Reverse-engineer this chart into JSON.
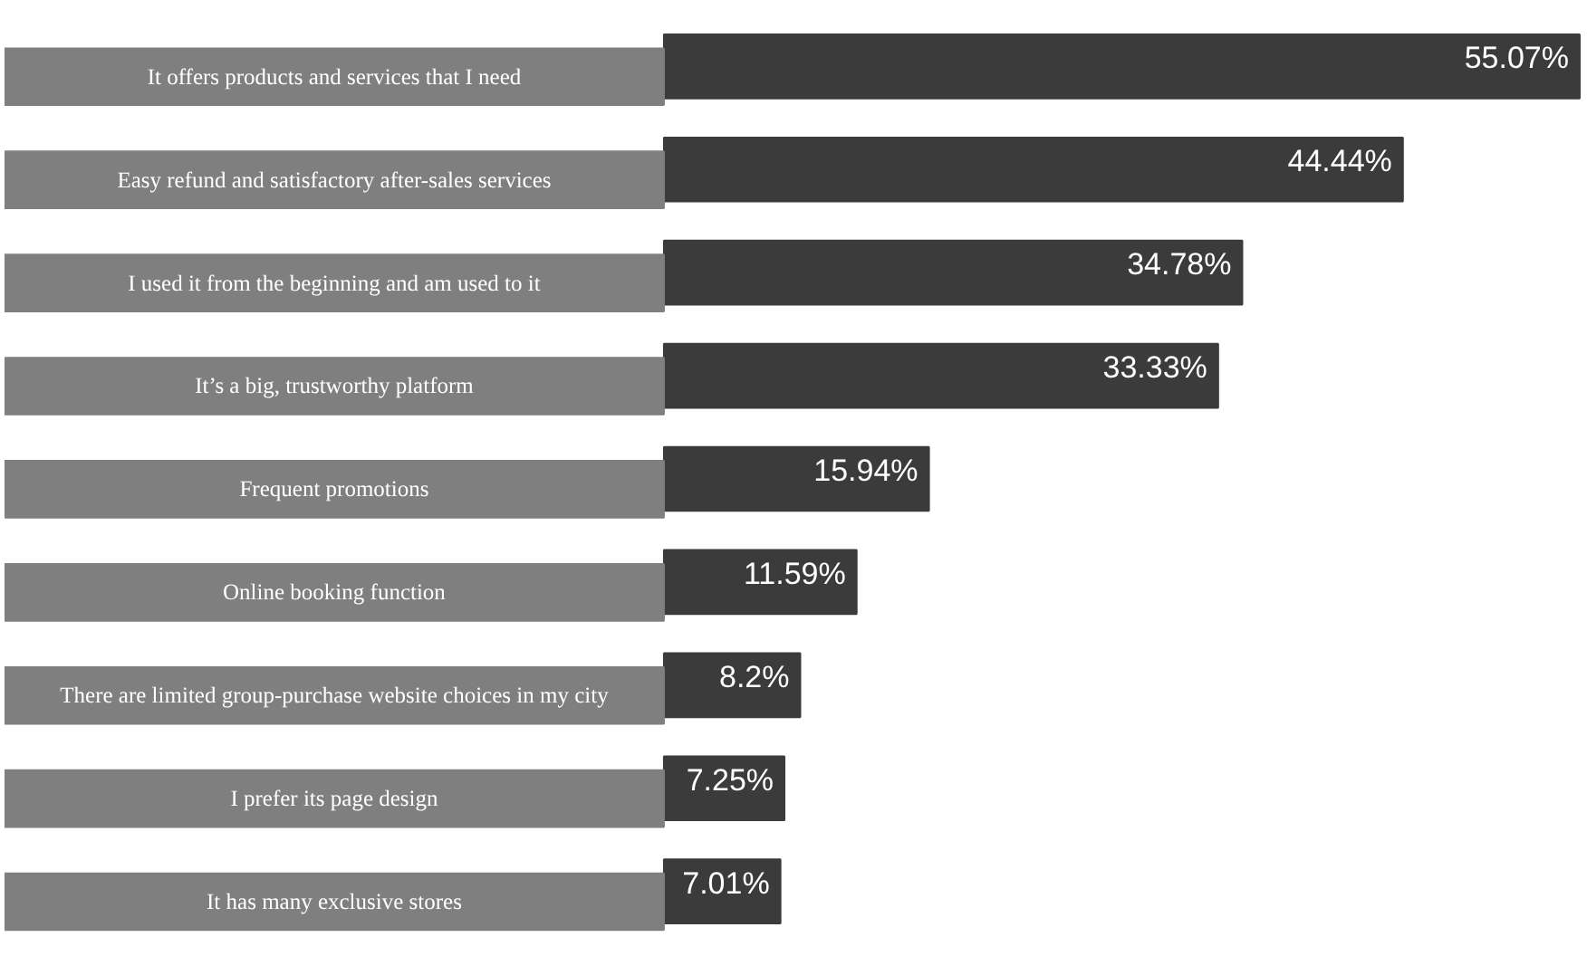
{
  "chart_data": {
    "type": "bar",
    "orientation": "horizontal",
    "categories": [
      "It offers products and services that I need",
      "Easy refund and satisfactory after-sales services",
      "I used it from the beginning and am used to it",
      "It’s a big, trustworthy platform",
      "Frequent promotions",
      "Online booking function",
      "There are limited group-purchase website choices in my city",
      "I prefer its page design",
      "It has many exclusive stores"
    ],
    "values": [
      55.07,
      44.44,
      34.78,
      33.33,
      15.94,
      11.59,
      8.2,
      7.25,
      7.01
    ],
    "value_labels": [
      "55.07%",
      "44.44%",
      "34.78%",
      "33.33%",
      "15.94%",
      "11.59%",
      "8.2%",
      "7.25%",
      "7.01%"
    ],
    "color": "#3b3b3b",
    "grid": false
  }
}
